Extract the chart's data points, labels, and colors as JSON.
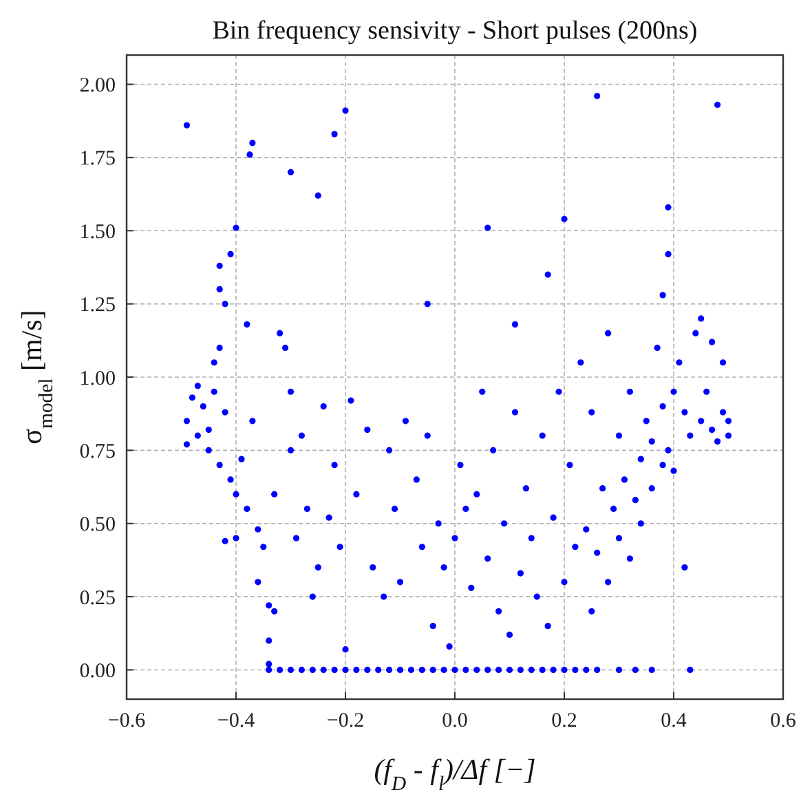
{
  "chart_data": {
    "type": "scatter",
    "title": "Bin frequency sensivity - Short pulses (200ns)",
    "xlabel": "(f$_{D}$ - f$_{l}$)/Δf [−]",
    "ylabel": "σ$_{model}$ [m/s]",
    "xlim": [
      -0.6,
      0.6
    ],
    "xticks": [
      {
        "value": -0.6,
        "label": "−0.6"
      },
      {
        "value": -0.4,
        "label": "−0.4"
      },
      {
        "value": -0.2,
        "label": "−0.2"
      },
      {
        "value": 0,
        "label": "0.0"
      },
      {
        "value": 0.2,
        "label": "0.2"
      },
      {
        "value": 0.4,
        "label": "0.4"
      },
      {
        "value": 0.6,
        "label": "0.6"
      }
    ],
    "ylim": [
      -0.1,
      2.1
    ],
    "yticks": [
      {
        "value": 0,
        "label": "0.00"
      },
      {
        "value": 0.25,
        "label": "0.25"
      },
      {
        "value": 0.5,
        "label": "0.50"
      },
      {
        "value": 0.75,
        "label": "0.75"
      },
      {
        "value": 1,
        "label": "1.00"
      },
      {
        "value": 1.25,
        "label": "1.25"
      },
      {
        "value": 1.5,
        "label": "1.50"
      },
      {
        "value": 1.75,
        "label": "1.75"
      },
      {
        "value": 2,
        "label": "2.00"
      }
    ],
    "grid": true,
    "marker": "circle",
    "series": [
      {
        "color": "#0000ff",
        "x": [
          -0.49,
          -0.37,
          -0.375,
          -0.3,
          -0.25,
          -0.22,
          -0.2,
          -0.4,
          -0.05,
          0.06,
          0.2,
          0.26,
          0.48,
          0.39,
          0.39,
          0.38,
          0.17,
          0.11,
          -0.41,
          -0.43,
          -0.43,
          -0.42,
          -0.49,
          -0.49,
          -0.48,
          -0.47,
          -0.46,
          -0.45,
          -0.47,
          -0.44,
          -0.43,
          -0.44,
          -0.45,
          -0.43,
          -0.42,
          -0.41,
          -0.4,
          -0.39,
          -0.38,
          -0.38,
          -0.37,
          -0.36,
          -0.42,
          -0.4,
          -0.35,
          -0.36,
          -0.34,
          -0.34,
          -0.34,
          -0.33,
          -0.33,
          -0.32,
          -0.31,
          -0.3,
          -0.3,
          -0.29,
          -0.28,
          -0.27,
          -0.26,
          -0.25,
          -0.24,
          -0.23,
          -0.22,
          -0.21,
          -0.2,
          -0.19,
          -0.18,
          -0.16,
          -0.15,
          -0.13,
          -0.12,
          -0.11,
          -0.1,
          -0.09,
          -0.07,
          -0.06,
          -0.05,
          -0.04,
          -0.03,
          -0.02,
          -0.01,
          0.0,
          0.01,
          0.02,
          0.03,
          0.04,
          0.05,
          0.06,
          0.07,
          0.08,
          0.09,
          0.1,
          0.11,
          0.12,
          0.13,
          0.14,
          0.15,
          0.16,
          0.17,
          0.18,
          0.19,
          0.2,
          0.21,
          0.22,
          0.23,
          0.24,
          0.25,
          0.25,
          0.26,
          0.27,
          0.28,
          0.28,
          0.29,
          0.3,
          0.3,
          0.31,
          0.32,
          0.32,
          0.33,
          0.34,
          0.34,
          0.35,
          0.36,
          0.36,
          0.37,
          0.38,
          0.38,
          0.39,
          0.4,
          0.4,
          0.41,
          0.42,
          0.42,
          0.43,
          0.44,
          0.45,
          0.45,
          0.46,
          0.47,
          0.47,
          0.48,
          0.49,
          0.49,
          0.5,
          0.5,
          -0.34,
          -0.32,
          -0.3,
          -0.28,
          -0.26,
          -0.24,
          -0.22,
          -0.2,
          -0.18,
          -0.16,
          -0.14,
          -0.12,
          -0.1,
          -0.08,
          -0.06,
          -0.04,
          -0.02,
          0.0,
          0.02,
          0.04,
          0.06,
          0.08,
          0.1,
          0.12,
          0.14,
          0.16,
          0.18,
          0.2,
          0.22,
          0.24,
          0.26,
          0.3,
          0.33,
          0.36,
          0.43
        ],
        "values": [
          1.86,
          1.8,
          1.76,
          1.7,
          1.62,
          1.83,
          1.91,
          1.51,
          1.25,
          1.51,
          1.54,
          1.96,
          1.93,
          1.58,
          1.42,
          1.28,
          1.35,
          1.18,
          1.42,
          1.38,
          1.3,
          1.25,
          0.77,
          0.85,
          0.93,
          0.97,
          0.9,
          0.82,
          0.8,
          0.95,
          1.1,
          1.05,
          0.75,
          0.7,
          0.88,
          0.65,
          0.6,
          0.72,
          0.55,
          1.18,
          0.85,
          0.48,
          0.44,
          0.45,
          0.42,
          0.3,
          0.22,
          0.1,
          0.02,
          0.2,
          0.6,
          1.15,
          1.1,
          0.95,
          0.75,
          0.45,
          0.8,
          0.55,
          0.25,
          0.35,
          0.9,
          0.52,
          0.7,
          0.42,
          0.07,
          0.92,
          0.6,
          0.82,
          0.35,
          0.25,
          0.75,
          0.55,
          0.3,
          0.85,
          0.65,
          0.42,
          0.8,
          0.15,
          0.5,
          0.35,
          0.08,
          0.45,
          0.7,
          0.55,
          0.28,
          0.6,
          0.95,
          0.38,
          0.75,
          0.2,
          0.5,
          0.12,
          0.88,
          0.33,
          0.62,
          0.45,
          0.25,
          0.8,
          0.15,
          0.52,
          0.95,
          0.3,
          0.7,
          0.42,
          1.05,
          0.48,
          0.2,
          0.88,
          0.4,
          0.62,
          1.15,
          0.3,
          0.55,
          0.45,
          0.8,
          0.65,
          0.38,
          0.95,
          0.58,
          0.72,
          0.5,
          0.85,
          0.62,
          0.78,
          1.1,
          0.7,
          0.9,
          0.75,
          0.95,
          0.68,
          1.05,
          0.88,
          0.35,
          0.8,
          1.15,
          0.85,
          1.2,
          0.95,
          0.82,
          1.12,
          0.78,
          0.88,
          1.05,
          0.8,
          0.85,
          0,
          0,
          0,
          0,
          0,
          0,
          0,
          0,
          0,
          0,
          0,
          0,
          0,
          0,
          0,
          0,
          0,
          0,
          0,
          0,
          0,
          0,
          0,
          0,
          0,
          0,
          0,
          0,
          0,
          0,
          0,
          0,
          0,
          0,
          0
        ]
      }
    ]
  }
}
